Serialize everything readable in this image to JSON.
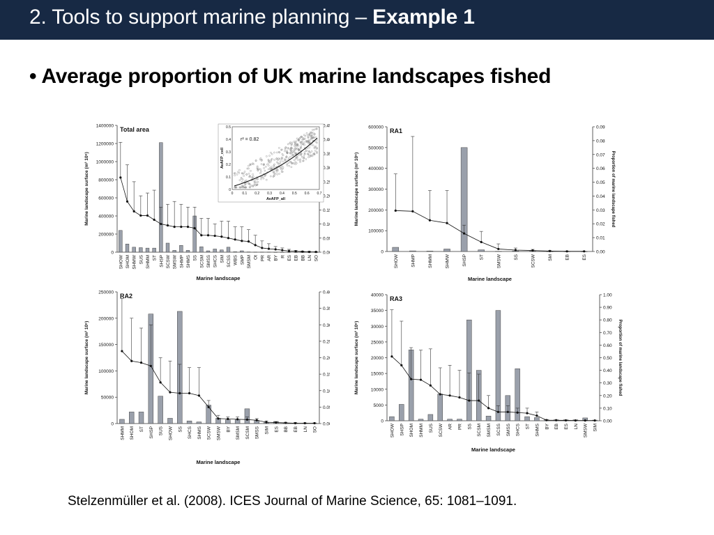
{
  "slide": {
    "title_plain": "2. Tools to support marine planning – ",
    "title_bold": "Example 1",
    "bullet_symbol": "•",
    "bullet_text": "Average proportion of UK marine landscapes fished",
    "citation": "Stelzenmüller et al. (2008). ICES Journal of Marine Science, 65: 1081–1091."
  },
  "colors": {
    "title_bar": "#172944",
    "bar_fill": "#9aa0ab",
    "bar_stroke": "#444444"
  },
  "chart_data": [
    {
      "type": "bar",
      "title": "Total area",
      "xlabel": "Marine landscape",
      "ylabel": "Marine landscape surface (m² 10⁶)",
      "y2label": "Proportion of marine landscape fished",
      "ylim": [
        0,
        1400000
      ],
      "yticks": [
        "0",
        "200000",
        "400000",
        "600000",
        "800000",
        "1000000",
        "1200000",
        "1400000"
      ],
      "y2lim": [
        0,
        0.45
      ],
      "y2ticks": [
        "0.00",
        "0.05",
        "0.10",
        "0.15",
        "0.20",
        "0.25",
        "0.30",
        "0.35",
        "0.40",
        "0.45"
      ],
      "categories": [
        "SHOW",
        "SHOM",
        "SHMW",
        "SUS",
        "SHMM",
        "ST",
        "SHSP",
        "SCSW",
        "SMSW",
        "SHMP",
        "SHMS",
        "SS",
        "SCSM",
        "SMSS",
        "SHCS",
        "SIM",
        "SCSS",
        "WBS",
        "SMP",
        "SMSM",
        "Ot",
        "PR",
        "AR",
        "BY",
        "R",
        "ES",
        "EB",
        "BB",
        "LN",
        "SO"
      ],
      "values": [
        240000,
        90000,
        55000,
        50000,
        45000,
        45000,
        1210000,
        100000,
        20000,
        75000,
        20000,
        400000,
        60000,
        15000,
        35000,
        25000,
        55000,
        5000,
        15000,
        3000,
        2000,
        2000,
        2000,
        1000,
        1000,
        1000,
        500,
        500,
        500,
        500
      ],
      "proportion": [
        0.265,
        0.18,
        0.145,
        0.13,
        0.13,
        0.115,
        0.1,
        0.095,
        0.09,
        0.09,
        0.09,
        0.085,
        0.06,
        0.06,
        0.058,
        0.055,
        0.05,
        0.045,
        0.04,
        0.038,
        0.025,
        0.015,
        0.012,
        0.01,
        0.007,
        0.004,
        0.003,
        0.002,
        0.001,
        0.001
      ],
      "error_upper": [
        0.39,
        0.31,
        0.25,
        0.2,
        0.21,
        0.22,
        0.16,
        0.17,
        0.18,
        0.17,
        0.16,
        0.16,
        0.12,
        0.12,
        0.1,
        0.11,
        0.11,
        0.09,
        0.09,
        0.08,
        0.06,
        0.04,
        0.03,
        0.02,
        0.015,
        0.01,
        0.006,
        0.004,
        0.003,
        0.002
      ],
      "inset": {
        "type": "scatter",
        "annotation": "r² = 0.82",
        "xlabel": "AvAFP_all",
        "ylabel": "AvAFP_cell",
        "xticks": [
          "0",
          "0.1",
          "0.2",
          "0.3",
          "0.4",
          "0.5",
          "0.6",
          "0.7"
        ],
        "yticks": [
          "0",
          "0.1",
          "0.2",
          "0.3",
          "0.4",
          "0.5"
        ]
      }
    },
    {
      "type": "bar",
      "title": "RA1",
      "xlabel": "Marine landscape",
      "ylabel": "Marine landscape surface (m² 10⁶)",
      "y2label": "Proportion of marine landscape fished",
      "ylim": [
        0,
        600000
      ],
      "yticks": [
        "0",
        "100000",
        "200000",
        "300000",
        "400000",
        "500000",
        "600000"
      ],
      "y2lim": [
        0,
        0.09
      ],
      "y2ticks": [
        "0.00",
        "0.01",
        "0.02",
        "0.03",
        "0.04",
        "0.05",
        "0.06",
        "0.07",
        "0.08",
        "0.09"
      ],
      "categories": [
        "SHOW",
        "SHMP",
        "SHMM",
        "SHMW",
        "SHSP",
        "ST",
        "SMSW",
        "SS",
        "SCSW",
        "SM",
        "EB",
        "ES"
      ],
      "values": [
        20000,
        3000,
        2000,
        12000,
        500000,
        8000,
        1000,
        3000,
        2000,
        500,
        500,
        300
      ],
      "proportion": [
        0.0295,
        0.029,
        0.0225,
        0.0205,
        0.013,
        0.0068,
        0.0018,
        0.001,
        0.0007,
        0.0003,
        0.0001,
        0.0001
      ],
      "error_upper": [
        0.056,
        0.083,
        0.044,
        0.044,
        0.019,
        0.0145,
        0.0055,
        0.0025,
        0.0015,
        0.0006,
        0.0003,
        0.0002
      ]
    },
    {
      "type": "bar",
      "title": "RA2",
      "xlabel": "Marine landscape",
      "ylabel": "Marine landscape surface (m² 10⁶)",
      "y2label": "Proportion of marine landscape fished",
      "ylim": [
        0,
        250000
      ],
      "yticks": [
        "0",
        "50000",
        "100000",
        "150000",
        "200000",
        "250000"
      ],
      "y2lim": [
        0,
        0.4
      ],
      "y2ticks": [
        "0.00",
        "0.05",
        "0.10",
        "0.15",
        "0.20",
        "0.25",
        "0.30",
        "0.35",
        "0.40"
      ],
      "categories": [
        "SHMM",
        "SHOM",
        "ST",
        "SHSP",
        "SUS",
        "SHOW",
        "SS",
        "SHCS",
        "SHMS",
        "SCSW",
        "SMSW",
        "BY",
        "SMSM",
        "SCSM",
        "SMSS",
        "SIM",
        "ES",
        "BB",
        "EB",
        "LN",
        "SO"
      ],
      "values": [
        8000,
        22000,
        22000,
        208000,
        52000,
        10000,
        213000,
        5000,
        3000,
        35000,
        10000,
        7000,
        8000,
        28000,
        6000,
        2000,
        4000,
        1000,
        1000,
        500,
        500
      ],
      "proportion": [
        0.22,
        0.19,
        0.185,
        0.175,
        0.125,
        0.095,
        0.092,
        0.092,
        0.085,
        0.05,
        0.015,
        0.014,
        0.013,
        0.012,
        0.01,
        0.004,
        0.003,
        0.002,
        0.001,
        0.001,
        0.001
      ],
      "error_upper": [
        0.38,
        0.32,
        0.29,
        0.3,
        0.2,
        0.19,
        0.18,
        0.17,
        0.17,
        0.07,
        0.025,
        0.02,
        0.02,
        0.02,
        0.015,
        0.008,
        0.005,
        0.004,
        0.003,
        0.002,
        0.002
      ]
    },
    {
      "type": "bar",
      "title": "RA3",
      "xlabel": "Marine landscape",
      "ylabel": "Marine landscape surface (m² 10⁶)",
      "y2label": "Proportion of marine landscape fished",
      "ylim": [
        0,
        40000
      ],
      "yticks": [
        "0",
        "5000",
        "10000",
        "15000",
        "20000",
        "25000",
        "30000",
        "35000",
        "40000"
      ],
      "y2lim": [
        0,
        1.0
      ],
      "y2ticks": [
        "0.00",
        "0.10",
        "0.20",
        "0.30",
        "0.40",
        "0.50",
        "0.60",
        "0.70",
        "0.80",
        "0.90",
        "1.00"
      ],
      "categories": [
        "SHOW",
        "SHSP",
        "SHOM",
        "SHMM",
        "SUS",
        "SCSW",
        "AR",
        "PR",
        "SS",
        "SCSM",
        "SMSM",
        "SCSS",
        "SMSS",
        "SHCS",
        "ST",
        "SHMS",
        "BY",
        "EB",
        "ES",
        "LN",
        "SMSW",
        "SIM"
      ],
      "values": [
        1300,
        5200,
        22500,
        500,
        2000,
        8500,
        500,
        500,
        32000,
        16000,
        1500,
        35000,
        8000,
        16500,
        1300,
        1000,
        300,
        300,
        300,
        300,
        900,
        200
      ],
      "proportion": [
        0.51,
        0.44,
        0.33,
        0.325,
        0.28,
        0.21,
        0.2,
        0.185,
        0.16,
        0.16,
        0.1,
        0.07,
        0.07,
        0.065,
        0.06,
        0.04,
        0.005,
        0.004,
        0.003,
        0.002,
        0.002,
        0.002
      ],
      "error_upper": [
        0.88,
        0.79,
        0.58,
        0.56,
        0.57,
        0.42,
        0.44,
        0.4,
        0.38,
        0.37,
        0.2,
        0.12,
        0.12,
        0.1,
        0.1,
        0.07,
        0.01,
        0.006,
        0.005,
        0.003,
        0.004,
        0.003
      ]
    }
  ]
}
